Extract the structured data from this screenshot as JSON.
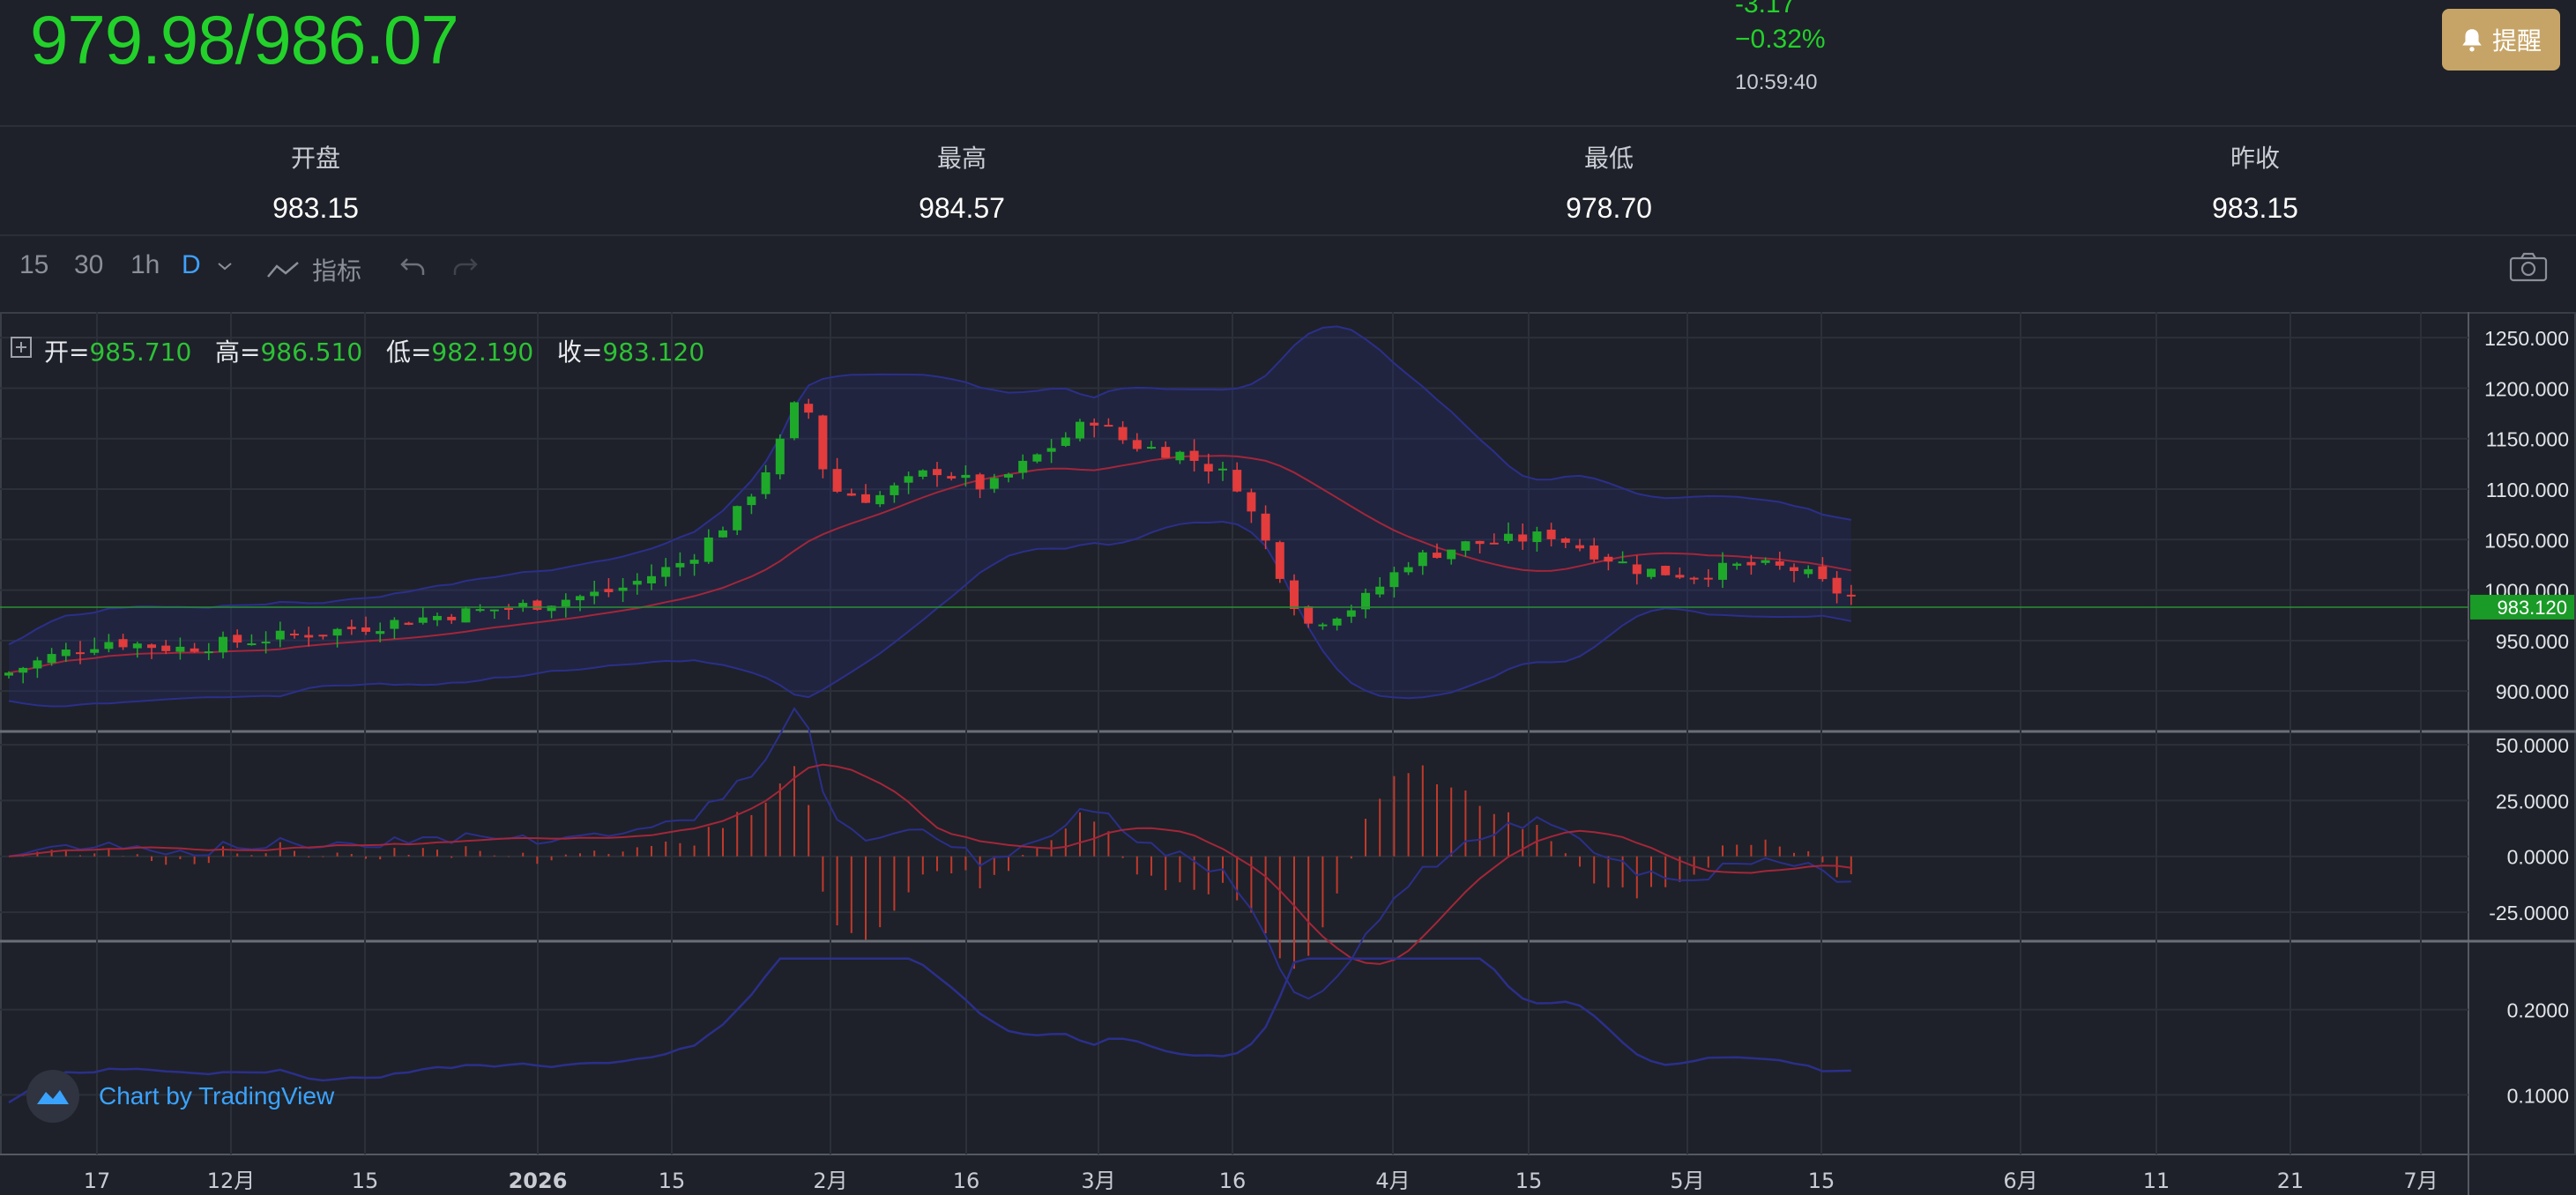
{
  "quote": {
    "price": "979.98/986.07",
    "change": "-3.17",
    "change_pct": "−0.32%",
    "time": "10:59:40",
    "alert_label": "提醒"
  },
  "stats": [
    {
      "label": "开盘",
      "value": "983.15"
    },
    {
      "label": "最高",
      "value": "984.57"
    },
    {
      "label": "最低",
      "value": "978.70"
    },
    {
      "label": "昨收",
      "value": "983.15"
    }
  ],
  "toolbar": {
    "intervals": [
      "15",
      "30",
      "1h",
      "D"
    ],
    "active_interval": "D",
    "indicators_label": "指标"
  },
  "ohlc_legend": {
    "open_label": "开=",
    "open": "985.710",
    "high_label": "高=",
    "high": "986.510",
    "low_label": "低=",
    "low": "982.190",
    "close_label": "收=",
    "close": "983.120"
  },
  "chart_data": [
    {
      "type": "candlestick",
      "title": "",
      "y_ticks": [
        "1250.000",
        "1200.000",
        "1150.000",
        "1100.000",
        "1050.000",
        "1000.000",
        "950.000",
        "900.000"
      ],
      "ylim": [
        860,
        1258
      ],
      "last_price_label": "983.120",
      "last_price": 983.12,
      "overlays": [
        "bollinger-bands",
        "moving-average"
      ]
    },
    {
      "type": "line",
      "title": "",
      "y_ticks": [
        "50.0000",
        "25.0000",
        "0.0000",
        "-25.0000"
      ],
      "ylim": [
        -38,
        52
      ],
      "series_kinds": [
        "histogram",
        "macd-line",
        "signal-line"
      ]
    },
    {
      "type": "line",
      "title": "",
      "y_ticks": [
        "0.2000",
        "0.1000"
      ],
      "ylim": [
        0.03,
        0.27
      ]
    }
  ],
  "x_axis_ticks": [
    "17",
    "12月",
    "15",
    "2026",
    "15",
    "2月",
    "16",
    "3月",
    "16",
    "4月",
    "15",
    "5月",
    "15",
    "6月",
    "11",
    "21",
    "7月"
  ],
  "x_axis_bold": "2026",
  "brand": {
    "text": "Chart by TradingView"
  },
  "colors": {
    "up": "#1fa92a",
    "down": "#e23c3c",
    "accent": "#3fa1ff",
    "price_green": "#23d12b",
    "alert_bg": "#c6a467"
  },
  "icons": [
    "bell-icon",
    "chevron-down-icon",
    "indicator-icon",
    "undo-icon",
    "redo-icon",
    "camera-icon",
    "expand-icon",
    "tradingview-logo-icon"
  ]
}
